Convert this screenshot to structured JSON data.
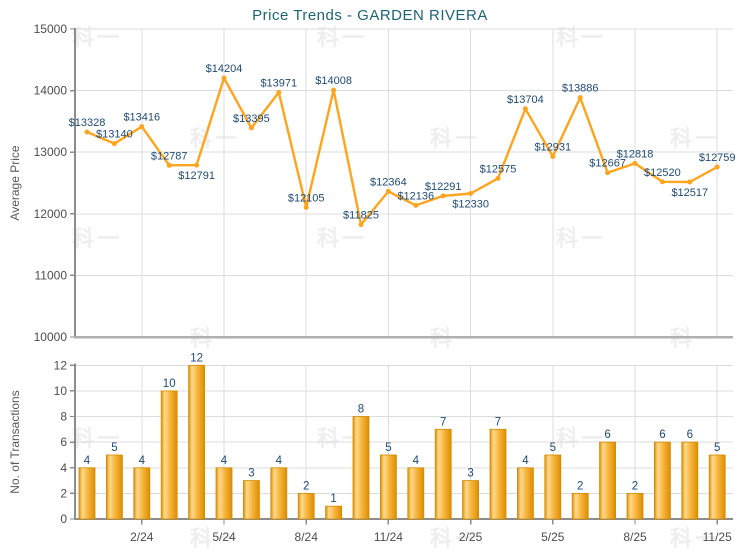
{
  "title": "Price Trends - GARDEN RIVERA",
  "watermark_text": "科一",
  "colors": {
    "title": "#1D6473",
    "line": "#FFA41E",
    "value_label": "#1F4A73",
    "axis_text": "#4D4D4D",
    "axis_title": "#595959",
    "grid": "#DCDCDC",
    "axis_line": "#8C8C8C",
    "chart1_baseline": "#B0B0B0",
    "bar_edge_dark": "#E19104",
    "bar_highlight": "#FFD98F",
    "bar_mid": "#F7B53B",
    "bar_edge_dark2": "#DE8D04",
    "bar_stroke": "#D08A00"
  },
  "chart_data": [
    {
      "type": "line",
      "title": "Price Trends - GARDEN RIVERA",
      "ylabel": "Average Price",
      "ylim": [
        10000,
        15000
      ],
      "yticks": [
        10000,
        11000,
        12000,
        13000,
        14000,
        15000
      ],
      "grid": true,
      "xtick_indices": [
        2,
        5,
        8,
        11,
        14,
        17,
        20,
        23
      ],
      "values": [
        13328,
        13140,
        13416,
        12787,
        12791,
        14204,
        13395,
        13971,
        12105,
        14008,
        11825,
        12364,
        12136,
        12291,
        12330,
        12575,
        13704,
        12931,
        13886,
        12667,
        12818,
        12520,
        12517,
        12759
      ],
      "point_labels": [
        "$13328",
        "$13140",
        "$13416",
        "$12787",
        "$12791",
        "$14204",
        "$13395",
        "$13971",
        "$12105",
        "$14008",
        "$11825",
        "$12364",
        "$12136",
        "$12291",
        "$12330",
        "$12575",
        "$13704",
        "$12931",
        "$13886",
        "$12667",
        "$12818",
        "$12520",
        "$12517",
        "$12759"
      ],
      "point_label_below": [
        4,
        14,
        22
      ]
    },
    {
      "type": "bar",
      "ylabel": "No. of Transactions",
      "ylim": [
        0,
        12
      ],
      "yticks": [
        0,
        2,
        4,
        6,
        8,
        10,
        12
      ],
      "grid": true,
      "xtick_indices": [
        2,
        5,
        8,
        11,
        14,
        17,
        20,
        23
      ],
      "xticklabels": [
        "2/24",
        "5/24",
        "8/24",
        "11/24",
        "2/25",
        "5/25",
        "8/25",
        "11/25"
      ],
      "values": [
        4,
        5,
        4,
        10,
        12,
        4,
        3,
        4,
        2,
        1,
        8,
        5,
        4,
        7,
        3,
        7,
        4,
        5,
        2,
        6,
        2,
        6,
        6,
        5
      ],
      "bar_labels": [
        "4",
        "5",
        "4",
        "10",
        "12",
        "4",
        "3",
        "4",
        "2",
        "1",
        "8",
        "5",
        "4",
        "7",
        "3",
        "7",
        "4",
        "5",
        "2",
        "6",
        "2",
        "6",
        "6",
        "5"
      ]
    }
  ]
}
